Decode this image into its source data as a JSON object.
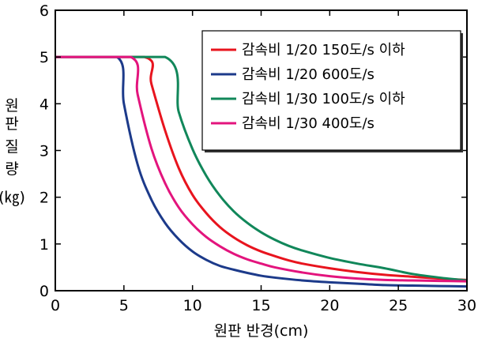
{
  "chart_data": {
    "type": "line",
    "xlabel": "원판 반경(cm)",
    "ylabel": [
      "원",
      "판",
      "질",
      "량",
      "(㎏)"
    ],
    "xlim": [
      0,
      30
    ],
    "ylim": [
      0,
      6
    ],
    "xticks": [
      0,
      5,
      10,
      15,
      20,
      25,
      30
    ],
    "yticks": [
      0,
      1,
      2,
      3,
      4,
      5,
      6
    ],
    "grid": false,
    "legend_position": "top-right",
    "series": [
      {
        "name": "감속비 1/20  150도/s 이하",
        "color": "#e8141e",
        "x": [
          0,
          6.5,
          7,
          8,
          9,
          10,
          11,
          12,
          13,
          14,
          15,
          16,
          17,
          18,
          20,
          22,
          24,
          26,
          28,
          30
        ],
        "y": [
          5,
          5,
          4.43,
          3.43,
          2.62,
          2.05,
          1.66,
          1.36,
          1.14,
          0.97,
          0.84,
          0.74,
          0.65,
          0.58,
          0.48,
          0.4,
          0.34,
          0.3,
          0.26,
          0.23
        ]
      },
      {
        "name": "감속비 1/20  600도/s",
        "color": "#1c3a8a",
        "x": [
          0,
          4.5,
          5,
          6,
          7,
          8,
          9,
          10,
          11,
          12,
          13,
          14,
          15,
          16,
          18,
          20,
          22,
          24,
          26,
          28,
          30
        ],
        "y": [
          5,
          5,
          4.0,
          2.7,
          1.95,
          1.45,
          1.1,
          0.84,
          0.66,
          0.53,
          0.45,
          0.38,
          0.32,
          0.28,
          0.22,
          0.18,
          0.15,
          0.12,
          0.11,
          0.1,
          0.09
        ]
      },
      {
        "name": "감속비 1/30  100도/s 이하",
        "color": "#11875a",
        "x": [
          0,
          8,
          9,
          10,
          11,
          12,
          13,
          14,
          15,
          16,
          17,
          18,
          20,
          22,
          24,
          26,
          28,
          30
        ],
        "y": [
          5,
          5,
          3.82,
          3.03,
          2.46,
          2.03,
          1.7,
          1.45,
          1.25,
          1.09,
          0.96,
          0.86,
          0.7,
          0.58,
          0.48,
          0.36,
          0.28,
          0.22
        ]
      },
      {
        "name": "감속비 1/30  400도/s",
        "color": "#e3147d",
        "x": [
          0,
          5.5,
          6,
          7,
          8,
          9,
          10,
          11,
          12,
          13,
          14,
          15,
          16,
          18,
          20,
          22,
          24,
          26,
          28,
          30
        ],
        "y": [
          5,
          5,
          4.2,
          3.05,
          2.3,
          1.78,
          1.42,
          1.15,
          0.95,
          0.79,
          0.67,
          0.58,
          0.5,
          0.39,
          0.31,
          0.26,
          0.23,
          0.22,
          0.21,
          0.2
        ]
      }
    ]
  }
}
